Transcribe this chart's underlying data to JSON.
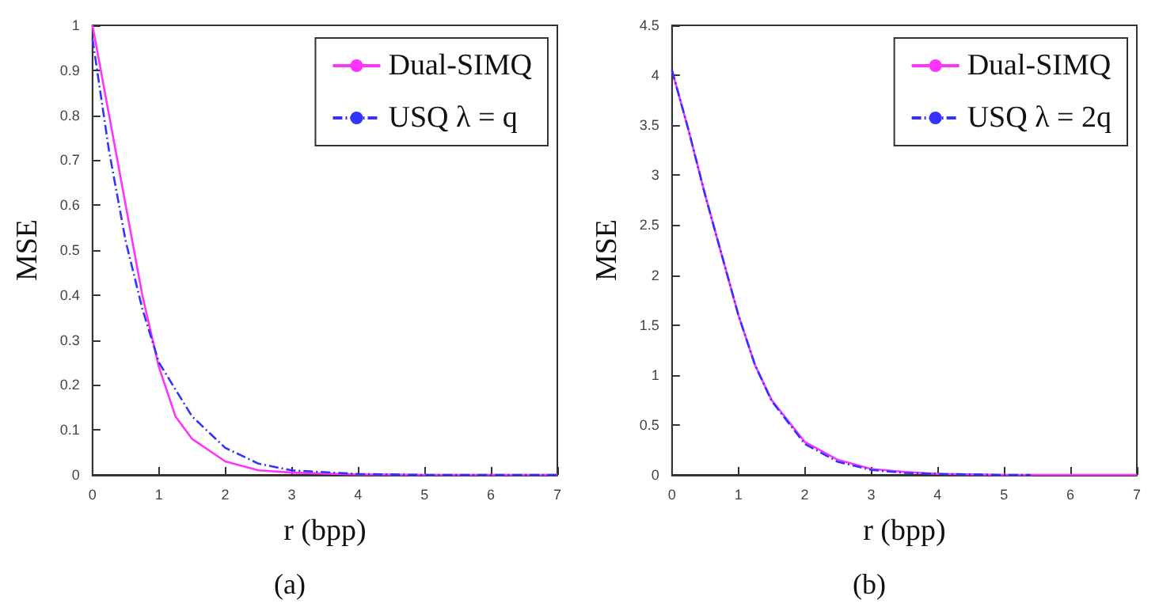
{
  "chart_data": [
    {
      "type": "line",
      "xlabel": "r (bpp)",
      "ylabel": "MSE",
      "annotations": [
        "(a)"
      ],
      "xlim": [
        0,
        7
      ],
      "xticks": [
        0,
        1,
        2,
        3,
        4,
        5,
        6,
        7
      ],
      "ylim": [
        0,
        1
      ],
      "yticks": [
        0,
        0.1,
        0.2,
        0.3,
        0.4,
        0.5,
        0.6,
        0.7,
        0.8,
        0.9,
        1
      ],
      "grid": false,
      "legend": "top right",
      "marker": "none",
      "series": [
        {
          "name": "Dual-SIMQ",
          "color": "#ff33ff",
          "line_style": "solid",
          "x": [
            0,
            0.25,
            0.5,
            0.75,
            1,
            1.25,
            1.5,
            2,
            2.5,
            3,
            4,
            5,
            7
          ],
          "values": [
            1,
            0.8,
            0.6,
            0.4,
            0.24,
            0.13,
            0.08,
            0.03,
            0.01,
            0.005,
            0.001,
            0,
            0
          ]
        },
        {
          "name": "USQ λ = q",
          "color": "#3333ff",
          "line_style": "dashed",
          "x": [
            0,
            0.25,
            0.5,
            0.75,
            1,
            1.5,
            2,
            2.5,
            3,
            4,
            5,
            7
          ],
          "values": [
            0.97,
            0.72,
            0.52,
            0.37,
            0.25,
            0.13,
            0.06,
            0.025,
            0.01,
            0.002,
            0,
            0
          ]
        }
      ]
    },
    {
      "type": "line",
      "xlabel": "r (bpp)",
      "ylabel": "MSE",
      "annotations": [
        "(b)"
      ],
      "xlim": [
        0,
        7
      ],
      "xticks": [
        0,
        1,
        2,
        3,
        4,
        5,
        6,
        7
      ],
      "ylim": [
        0,
        4.5
      ],
      "yticks": [
        0,
        0.5,
        1,
        1.5,
        2,
        2.5,
        3,
        3.5,
        4,
        4.5
      ],
      "grid": false,
      "legend": "top right",
      "marker": "none",
      "series": [
        {
          "name": "Dual-SIMQ",
          "color": "#ff33ff",
          "line_style": "solid",
          "x": [
            0,
            0.25,
            0.5,
            0.75,
            1,
            1.25,
            1.5,
            2,
            2.5,
            3,
            3.5,
            4,
            5,
            7
          ],
          "values": [
            4.05,
            3.45,
            2.8,
            2.2,
            1.6,
            1.1,
            0.75,
            0.33,
            0.15,
            0.06,
            0.03,
            0.01,
            0,
            0
          ]
        },
        {
          "name": "USQ λ = 2q",
          "color": "#3333ff",
          "line_style": "dashed",
          "x": [
            0,
            0.25,
            0.5,
            0.75,
            1,
            1.25,
            1.5,
            2,
            2.5,
            3,
            3.5,
            4,
            5,
            5.4
          ],
          "values": [
            4.05,
            3.45,
            2.8,
            2.2,
            1.6,
            1.1,
            0.74,
            0.31,
            0.13,
            0.05,
            0.02,
            0.01,
            0,
            0
          ]
        }
      ]
    }
  ]
}
